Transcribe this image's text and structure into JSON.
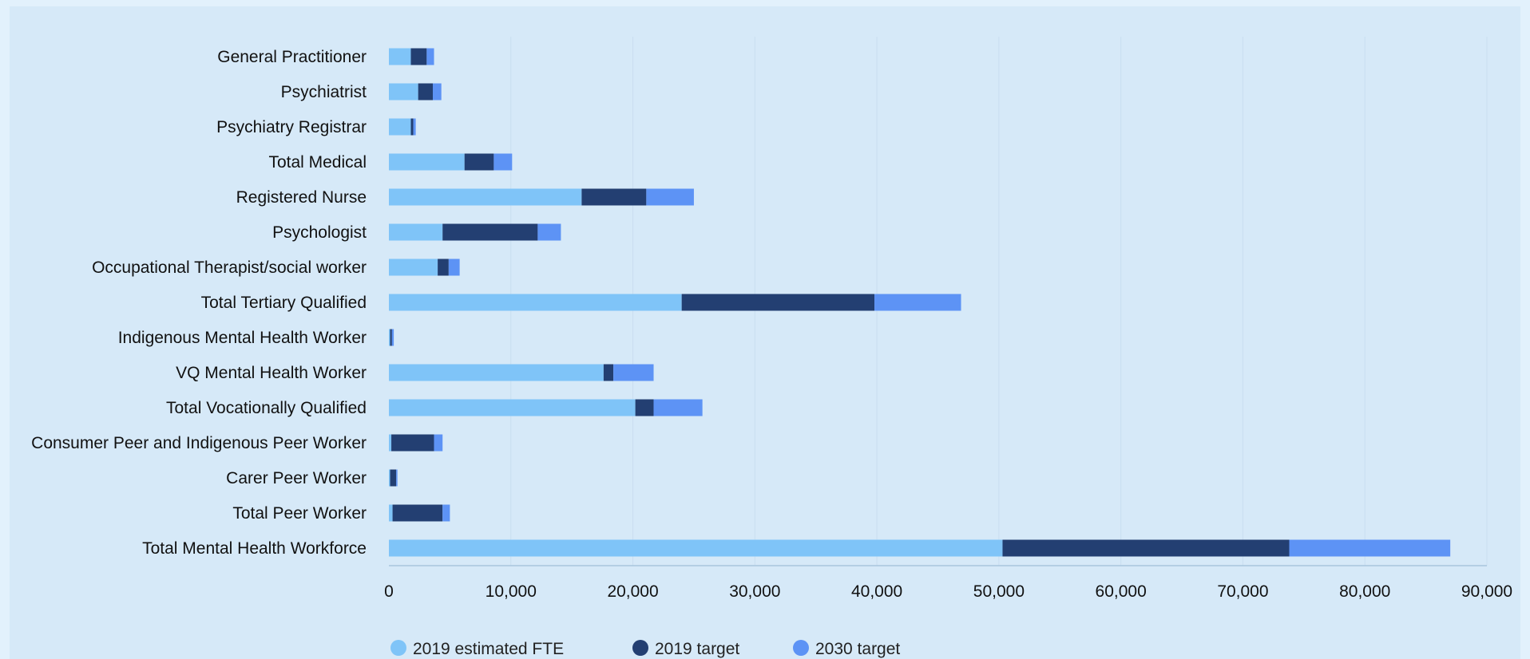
{
  "chart_data": {
    "type": "bar",
    "orientation": "horizontal",
    "stacked": true,
    "title": "",
    "xlabel": "",
    "ylabel": "",
    "xlim": [
      0,
      90000
    ],
    "x_ticks": [
      "0",
      "10,000",
      "20,000",
      "30,000",
      "40,000",
      "50,000",
      "60,000",
      "70,000",
      "80,000",
      "90,000"
    ],
    "grid": "vertical",
    "legend_position": "bottom",
    "categories": [
      "General Practitioner",
      "Psychiatrist",
      "Psychiatry Registrar",
      "Total Medical",
      "Registered Nurse",
      "Psychologist",
      "Occupational Therapist/social worker",
      "Total Tertiary Qualified",
      "Indigenous Mental Health Worker",
      "VQ Mental Health Worker",
      "Total Vocationally Qualified",
      "Consumer Peer and Indigenous Peer Worker",
      "Carer Peer Worker",
      "Total Peer Worker",
      "Total Mental Health Workforce"
    ],
    "series": [
      {
        "name": "2019 estimated FTE",
        "color": "#7fc4f8",
        "values": [
          1800,
          2400,
          1800,
          6200,
          15800,
          4400,
          4000,
          24000,
          100,
          17600,
          20200,
          200,
          100,
          300,
          50300
        ]
      },
      {
        "name": "2019 target",
        "color": "#233f72",
        "values": [
          1300,
          1200,
          200,
          2400,
          5300,
          7800,
          900,
          15800,
          150,
          800,
          1500,
          3500,
          500,
          4100,
          23500
        ]
      },
      {
        "name": "2030 target",
        "color": "#5d93f5",
        "values": [
          600,
          700,
          200,
          1500,
          3900,
          1900,
          900,
          7100,
          150,
          3300,
          4000,
          700,
          100,
          600,
          13200
        ]
      }
    ]
  }
}
